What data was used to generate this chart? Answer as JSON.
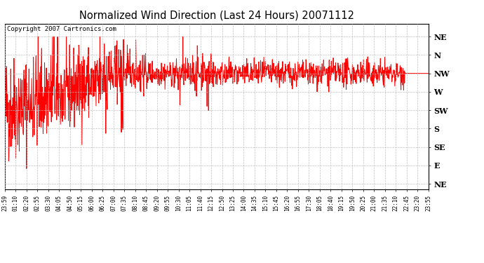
{
  "title": "Normalized Wind Direction (Last 24 Hours) 20071112",
  "copyright": "Copyright 2007 Cartronics.com",
  "line_color": "red",
  "background_color": "white",
  "plot_bg_color": "white",
  "ytick_labels": [
    "NE",
    "N",
    "NW",
    "W",
    "SW",
    "S",
    "SE",
    "E",
    "NE"
  ],
  "ytick_values": [
    8,
    7,
    6,
    5,
    4,
    3,
    2,
    1,
    0
  ],
  "ylim": [
    -0.3,
    8.7
  ],
  "grid_color": "#bbbbbb",
  "grid_style": "--",
  "xtick_labels": [
    "23:59",
    "01:10",
    "02:20",
    "02:55",
    "03:30",
    "04:05",
    "04:50",
    "05:15",
    "06:00",
    "06:25",
    "07:00",
    "07:35",
    "08:10",
    "08:45",
    "09:20",
    "09:55",
    "10:30",
    "11:05",
    "11:40",
    "12:15",
    "12:50",
    "13:25",
    "14:00",
    "14:35",
    "15:10",
    "15:45",
    "16:20",
    "16:55",
    "17:30",
    "18:05",
    "18:40",
    "19:15",
    "19:50",
    "20:25",
    "21:00",
    "21:35",
    "22:10",
    "22:45",
    "23:20",
    "23:55"
  ],
  "seed": 42,
  "n_points": 1440,
  "figsize": [
    6.9,
    3.75
  ],
  "dpi": 100
}
